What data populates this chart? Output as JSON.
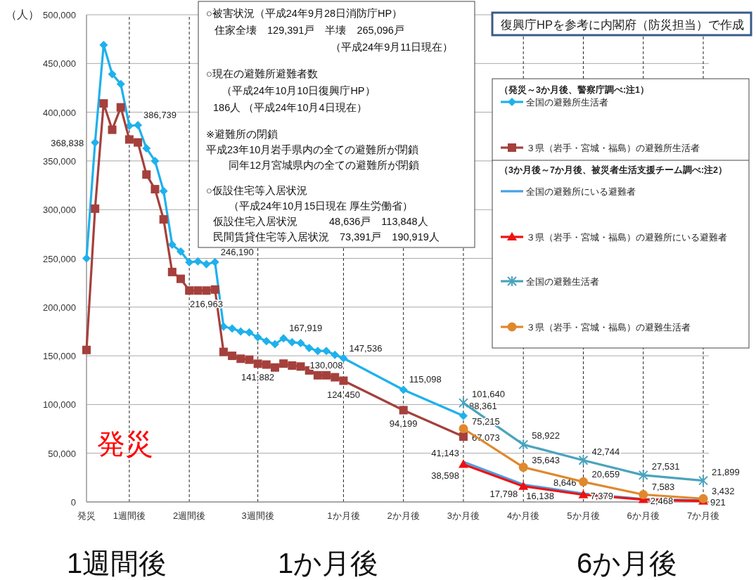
{
  "chart_data": {
    "type": "line",
    "ylabel": "（人）",
    "categories": [
      "発災",
      null,
      null,
      null,
      null,
      "1週間後",
      null,
      null,
      null,
      null,
      null,
      null,
      "2週間後",
      null,
      null,
      null,
      null,
      null,
      null,
      null,
      "3週間後",
      null,
      null,
      null,
      null,
      null,
      null,
      null,
      null,
      null,
      "1か月後",
      null,
      null,
      null,
      null,
      null,
      null,
      "2か月後",
      null,
      null,
      null,
      null,
      null,
      null,
      "3か月後",
      null,
      null,
      null,
      null,
      null,
      null,
      "4か月後",
      null,
      null,
      null,
      null,
      null,
      null,
      "5か月後",
      null,
      null,
      null,
      null,
      null,
      null,
      "6か月後",
      null,
      null,
      null,
      null,
      null,
      null,
      "7か月後"
    ],
    "ylim": [
      0,
      500000
    ],
    "yticks": [
      {
        "value": 0,
        "label": "0"
      },
      {
        "value": 50000,
        "label": "50,000"
      },
      {
        "value": 100000,
        "label": "100,000"
      },
      {
        "value": 150000,
        "label": "150,000"
      },
      {
        "value": 200000,
        "label": "200,000"
      },
      {
        "value": 250000,
        "label": "250,000"
      },
      {
        "value": 300000,
        "label": "300,000"
      },
      {
        "value": 350000,
        "label": "350,000"
      },
      {
        "value": 400000,
        "label": "400,000"
      },
      {
        "value": 450000,
        "label": "450,000"
      },
      {
        "value": 500000,
        "label": "500,000"
      }
    ],
    "grid": true,
    "legend": "top right",
    "series": [
      {
        "name": "全国の避難所生活者",
        "color": "#1fb1ec",
        "marker": "diamond",
        "values": [
          250000,
          368838,
          469000,
          439000,
          429000,
          386000,
          386739,
          363000,
          350000,
          319000,
          264000,
          257000,
          246000,
          247000,
          244000,
          246190,
          180000,
          178000,
          175000,
          174000,
          169000,
          165000,
          162000,
          167919,
          164000,
          163000,
          158000,
          155000,
          155000,
          151000,
          147536,
          null,
          null,
          null,
          null,
          null,
          null,
          115098,
          null,
          null,
          null,
          null,
          null,
          null,
          88361,
          null,
          null,
          null,
          null,
          null,
          null,
          null,
          null,
          null,
          null,
          null,
          null,
          null,
          null,
          null,
          null,
          null,
          null,
          null,
          null,
          null,
          null,
          null,
          null,
          null,
          null,
          null,
          null
        ],
        "value_labels": [
          null,
          "368,838",
          null,
          null,
          null,
          null,
          "386,739",
          null,
          null,
          null,
          null,
          null,
          null,
          null,
          null,
          "246,190",
          null,
          null,
          null,
          null,
          null,
          null,
          null,
          "167,919",
          null,
          null,
          null,
          null,
          null,
          null,
          "147,536",
          null,
          null,
          null,
          null,
          null,
          null,
          "115,098",
          null,
          null,
          null,
          null,
          null,
          null,
          "88,361",
          null,
          null,
          null,
          null,
          null,
          null,
          null,
          null,
          null,
          null,
          null,
          null,
          null,
          null,
          null,
          null,
          null,
          null,
          null,
          null,
          null,
          null,
          null,
          null,
          null,
          null,
          null,
          null
        ]
      },
      {
        "name": "３県（岩手・宮城・福島）の避難所生活者",
        "color": "#a5403c",
        "marker": "square",
        "values": [
          156000,
          301000,
          409000,
          382000,
          405000,
          372000,
          369000,
          336000,
          321000,
          290000,
          236000,
          229000,
          217000,
          217000,
          216963,
          218000,
          154000,
          150000,
          147000,
          146000,
          141882,
          141000,
          138000,
          142000,
          140000,
          139000,
          135000,
          130000,
          130008,
          128000,
          124450,
          null,
          null,
          null,
          null,
          null,
          null,
          94199,
          null,
          null,
          null,
          null,
          null,
          null,
          67073,
          null,
          null,
          null,
          null,
          null,
          null,
          null,
          null,
          null,
          null,
          null,
          null,
          null,
          null,
          null,
          null,
          null,
          null,
          null,
          null,
          null,
          null,
          null,
          null,
          null,
          null,
          null,
          null
        ],
        "value_labels": [
          null,
          null,
          null,
          null,
          null,
          null,
          null,
          null,
          null,
          null,
          null,
          null,
          null,
          null,
          "216,963",
          null,
          null,
          null,
          null,
          null,
          "141,882",
          null,
          null,
          null,
          null,
          null,
          null,
          null,
          "130,008",
          null,
          "124,450",
          null,
          null,
          null,
          null,
          null,
          null,
          "94,199",
          null,
          null,
          null,
          null,
          null,
          null,
          "67,073",
          null,
          null,
          null,
          null,
          null,
          null,
          null,
          null,
          null,
          null,
          null,
          null,
          null,
          null,
          null,
          null,
          null,
          null,
          null,
          null,
          null,
          null,
          null,
          null,
          null,
          null,
          null,
          null
        ]
      },
      {
        "name": "全国の避難所にいる避難者",
        "color": "#4a9fe0",
        "marker": "none",
        "values": [
          null,
          null,
          null,
          null,
          null,
          null,
          null,
          null,
          null,
          null,
          null,
          null,
          null,
          null,
          null,
          null,
          null,
          null,
          null,
          null,
          null,
          null,
          null,
          null,
          null,
          null,
          null,
          null,
          null,
          null,
          null,
          null,
          null,
          null,
          null,
          null,
          null,
          null,
          null,
          null,
          null,
          null,
          null,
          null,
          41143,
          null,
          null,
          null,
          null,
          null,
          null,
          17798,
          null,
          null,
          null,
          null,
          null,
          null,
          8646,
          null,
          null,
          null,
          null,
          null,
          null,
          3000,
          null,
          null,
          null,
          null,
          null,
          null,
          1500
        ],
        "value_labels": [
          null,
          null,
          null,
          null,
          null,
          null,
          null,
          null,
          null,
          null,
          null,
          null,
          null,
          null,
          null,
          null,
          null,
          null,
          null,
          null,
          null,
          null,
          null,
          null,
          null,
          null,
          null,
          null,
          null,
          null,
          null,
          null,
          null,
          null,
          null,
          null,
          null,
          null,
          null,
          null,
          null,
          null,
          null,
          null,
          "41,143",
          null,
          null,
          null,
          null,
          null,
          null,
          "17,798",
          null,
          null,
          null,
          null,
          null,
          null,
          "8,646",
          null,
          null,
          null,
          null,
          null,
          null,
          null,
          null,
          null,
          null,
          null,
          null,
          null,
          null
        ]
      },
      {
        "name": "３県（岩手・宮城・福島）の避難所にいる避難者",
        "color": "#ee1111",
        "marker": "triangle",
        "values": [
          null,
          null,
          null,
          null,
          null,
          null,
          null,
          null,
          null,
          null,
          null,
          null,
          null,
          null,
          null,
          null,
          null,
          null,
          null,
          null,
          null,
          null,
          null,
          null,
          null,
          null,
          null,
          null,
          null,
          null,
          null,
          null,
          null,
          null,
          null,
          null,
          null,
          null,
          null,
          null,
          null,
          null,
          null,
          null,
          38598,
          null,
          null,
          null,
          null,
          null,
          null,
          16138,
          null,
          null,
          null,
          null,
          null,
          null,
          7379,
          null,
          null,
          null,
          null,
          null,
          null,
          2468,
          null,
          null,
          null,
          null,
          null,
          null,
          921
        ],
        "value_labels": [
          null,
          null,
          null,
          null,
          null,
          null,
          null,
          null,
          null,
          null,
          null,
          null,
          null,
          null,
          null,
          null,
          null,
          null,
          null,
          null,
          null,
          null,
          null,
          null,
          null,
          null,
          null,
          null,
          null,
          null,
          null,
          null,
          null,
          null,
          null,
          null,
          null,
          null,
          null,
          null,
          null,
          null,
          null,
          null,
          "38,598",
          null,
          null,
          null,
          null,
          null,
          null,
          "16,138",
          null,
          null,
          null,
          null,
          null,
          null,
          "7,379",
          null,
          null,
          null,
          null,
          null,
          null,
          "2,468",
          null,
          null,
          null,
          null,
          null,
          null,
          "921"
        ]
      },
      {
        "name": "全国の避難生活者",
        "color": "#4ba3bd",
        "marker": "cross",
        "values": [
          null,
          null,
          null,
          null,
          null,
          null,
          null,
          null,
          null,
          null,
          null,
          null,
          null,
          null,
          null,
          null,
          null,
          null,
          null,
          null,
          null,
          null,
          null,
          null,
          null,
          null,
          null,
          null,
          null,
          null,
          null,
          null,
          null,
          null,
          null,
          null,
          null,
          null,
          null,
          null,
          null,
          null,
          null,
          null,
          101640,
          null,
          null,
          null,
          null,
          null,
          null,
          58922,
          null,
          null,
          null,
          null,
          null,
          null,
          42744,
          null,
          null,
          null,
          null,
          null,
          null,
          27531,
          null,
          null,
          null,
          null,
          null,
          null,
          21899
        ],
        "value_labels": [
          null,
          null,
          null,
          null,
          null,
          null,
          null,
          null,
          null,
          null,
          null,
          null,
          null,
          null,
          null,
          null,
          null,
          null,
          null,
          null,
          null,
          null,
          null,
          null,
          null,
          null,
          null,
          null,
          null,
          null,
          null,
          null,
          null,
          null,
          null,
          null,
          null,
          null,
          null,
          null,
          null,
          null,
          null,
          null,
          "101,640",
          null,
          null,
          null,
          null,
          null,
          null,
          "58,922",
          null,
          null,
          null,
          null,
          null,
          null,
          "42,744",
          null,
          null,
          null,
          null,
          null,
          null,
          "27,531",
          null,
          null,
          null,
          null,
          null,
          null,
          "21,899"
        ]
      },
      {
        "name": "３県（岩手・宮城・福島）の避難生活者",
        "color": "#e0882e",
        "marker": "circle",
        "values": [
          null,
          null,
          null,
          null,
          null,
          null,
          null,
          null,
          null,
          null,
          null,
          null,
          null,
          null,
          null,
          null,
          null,
          null,
          null,
          null,
          null,
          null,
          null,
          null,
          null,
          null,
          null,
          null,
          null,
          null,
          null,
          null,
          null,
          null,
          null,
          null,
          null,
          null,
          null,
          null,
          null,
          null,
          null,
          null,
          75215,
          null,
          null,
          null,
          null,
          null,
          null,
          35643,
          null,
          null,
          null,
          null,
          null,
          null,
          20659,
          null,
          null,
          null,
          null,
          null,
          null,
          7583,
          null,
          null,
          null,
          null,
          null,
          null,
          3432
        ],
        "value_labels": [
          null,
          null,
          null,
          null,
          null,
          null,
          null,
          null,
          null,
          null,
          null,
          null,
          null,
          null,
          null,
          null,
          null,
          null,
          null,
          null,
          null,
          null,
          null,
          null,
          null,
          null,
          null,
          null,
          null,
          null,
          null,
          null,
          null,
          null,
          null,
          null,
          null,
          null,
          null,
          null,
          null,
          null,
          null,
          null,
          "75,215",
          null,
          null,
          null,
          null,
          null,
          null,
          "35,643",
          null,
          null,
          null,
          null,
          null,
          null,
          "20,659",
          null,
          null,
          null,
          null,
          null,
          null,
          "7,583",
          null,
          null,
          null,
          null,
          null,
          null,
          "3,432"
        ]
      }
    ],
    "annotations": [
      "復興庁HPを参考に内閣府（防災担当）で作成",
      "○被害状況（平成24年9月28日消防庁HP）",
      "住家全壊　129,391戸　半壊　265,096戸",
      "（平成24年9月11日現在）",
      "○現在の避難所避難者数",
      "（平成24年10月10日復興庁HP）",
      "186人 （平成24年10月4日現在）",
      "※避難所の閉鎖",
      "平成23年10月岩手県内の全ての避難所が閉鎖",
      "同年12月宮城県内の全ての避難所が閉鎖",
      "○仮設住宅等入居状況",
      "（平成24年10月15日現在 厚生労働省）",
      "仮設住宅入居状況　　　48,636戸　113,848人",
      "民間賃貸住宅等入居状況　73,391戸　190,919人",
      "（発災～3か月後、警察庁調べ:注1）",
      "（3か月後～7か月後、被災者生活支援チーム調べ:注2）",
      "発災",
      "1週間後",
      "1か月後",
      "6か月後"
    ]
  }
}
